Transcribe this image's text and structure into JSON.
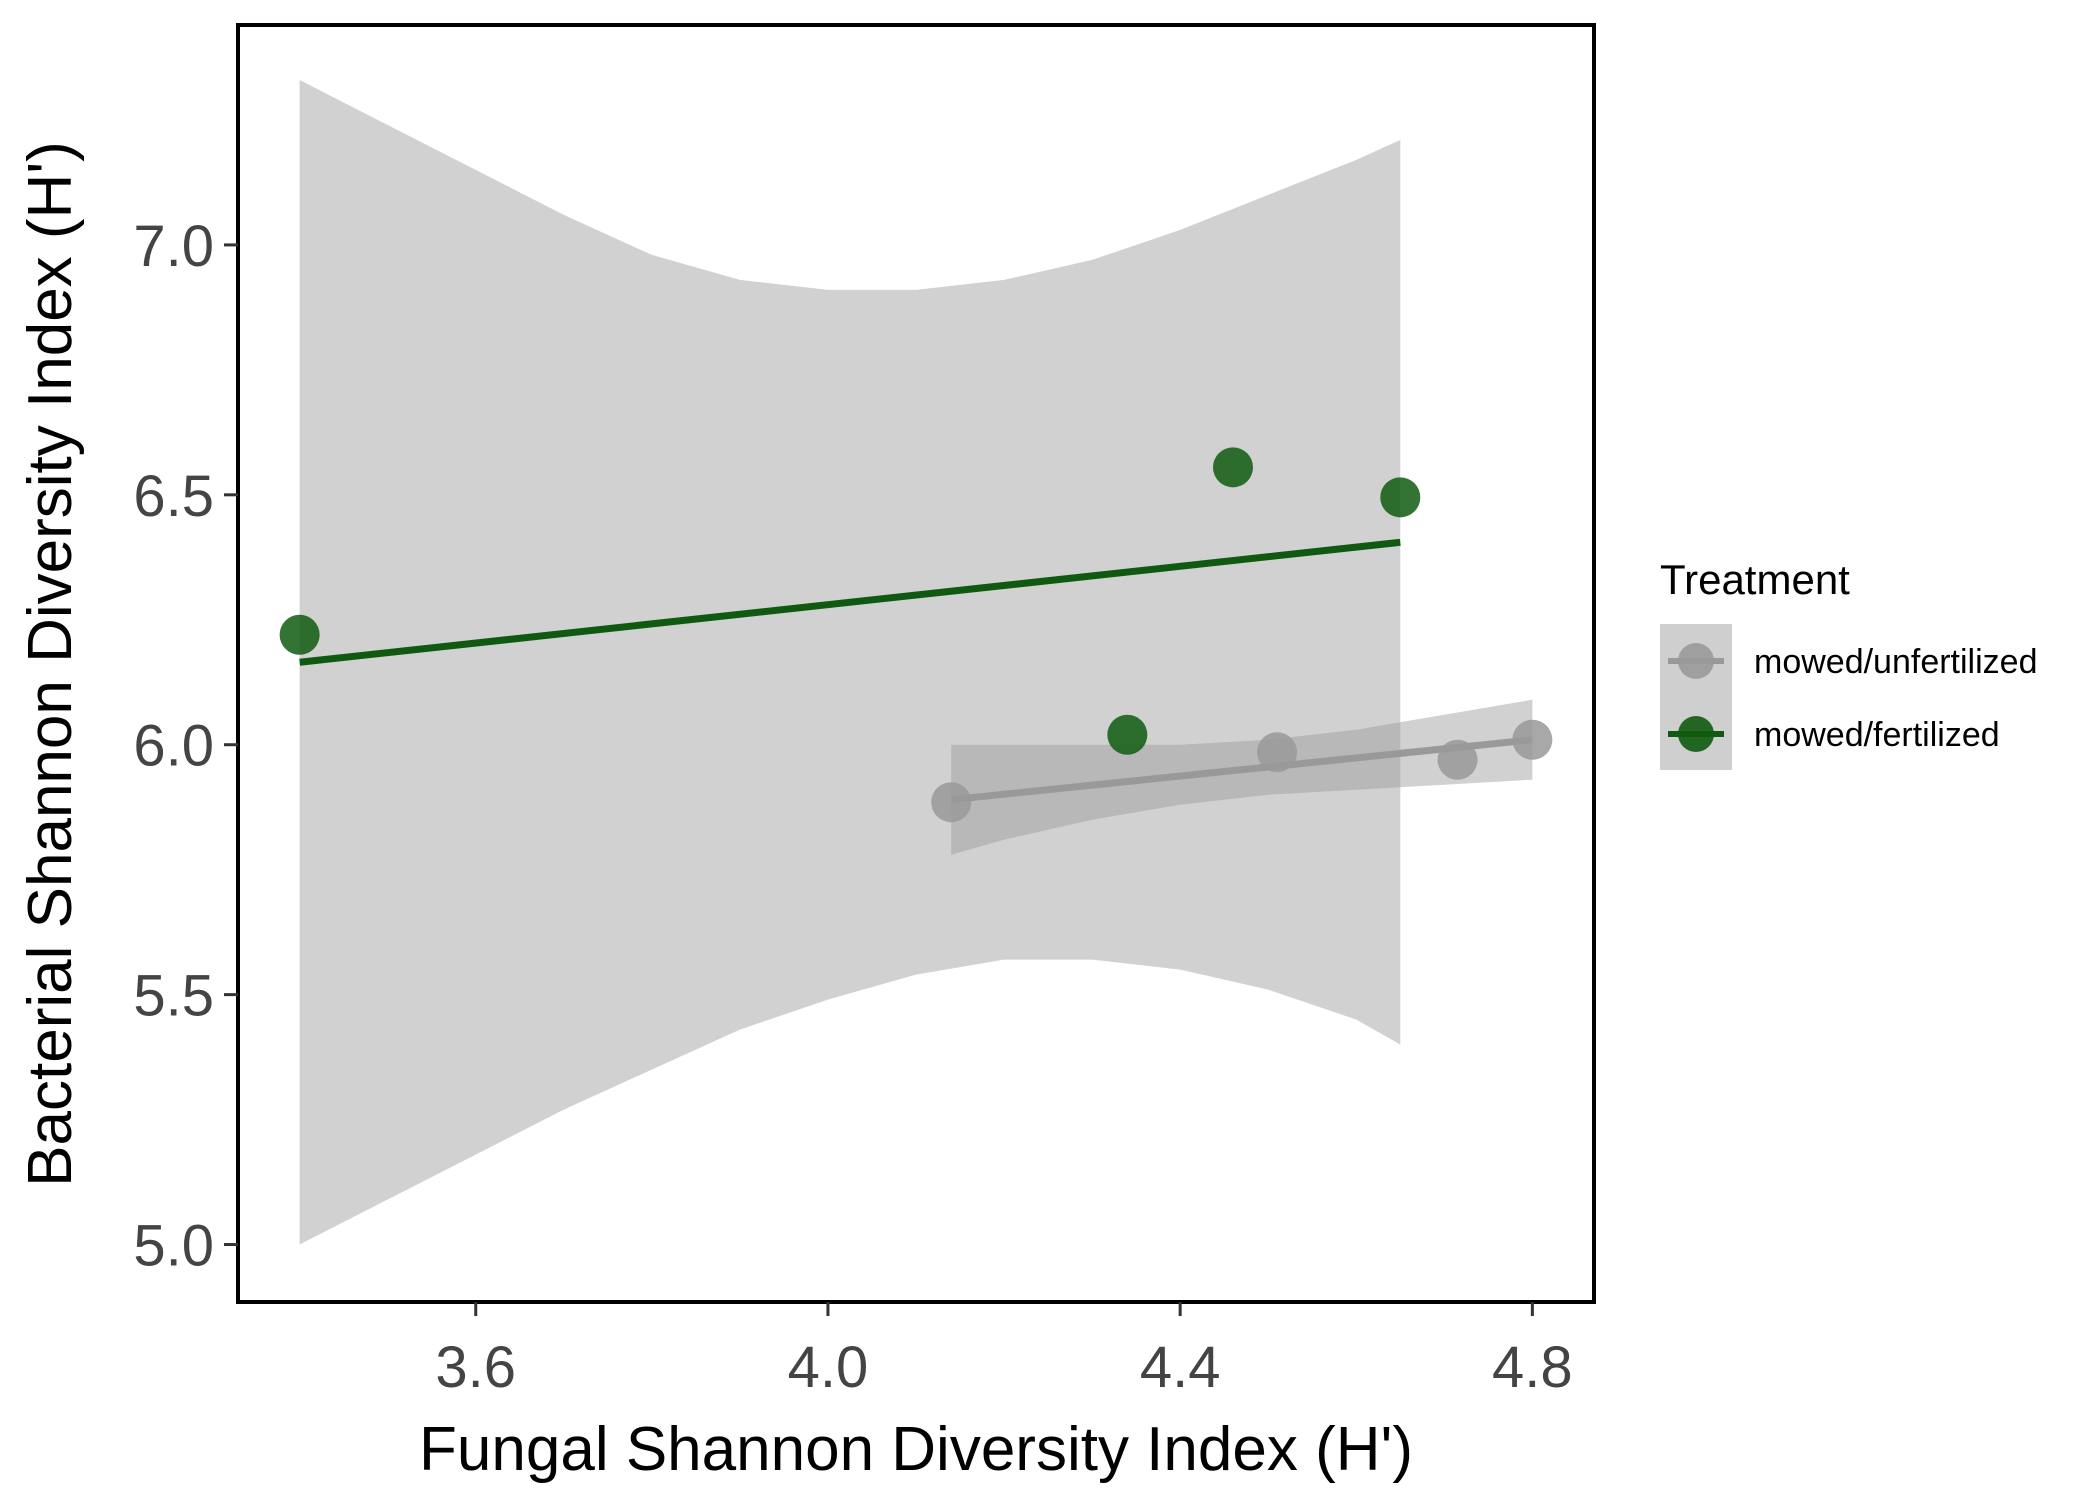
{
  "chart_data": {
    "type": "scatter",
    "title": "",
    "xlabel": "Fungal Shannon Diversity Index (H')",
    "ylabel": "Bacterial Shannon Diversity Index (H')",
    "xlim": [
      3.33,
      4.87
    ],
    "ylim": [
      4.885,
      7.44
    ],
    "x_ticks": [
      3.6,
      4.0,
      4.4,
      4.8
    ],
    "x_tick_labels": [
      "3.6",
      "4.0",
      "4.4",
      "4.8"
    ],
    "y_ticks": [
      5.0,
      5.5,
      6.0,
      6.5,
      7.0
    ],
    "y_tick_labels": [
      "5.0",
      "5.5",
      "6.0",
      "6.5",
      "7.0"
    ],
    "grid": false,
    "legend": {
      "title": "Treatment",
      "position": "right"
    },
    "series": [
      {
        "name": "mowed/unfertilized",
        "color": "#999999",
        "points": [
          {
            "x": 4.14,
            "y": 5.885
          },
          {
            "x": 4.51,
            "y": 5.985
          },
          {
            "x": 4.715,
            "y": 5.97
          },
          {
            "x": 4.8,
            "y": 6.01
          }
        ],
        "fit_line": {
          "x": [
            4.14,
            4.8
          ],
          "y": [
            5.89,
            6.01
          ]
        },
        "confidence_band": {
          "x": [
            4.14,
            4.2,
            4.3,
            4.4,
            4.5,
            4.6,
            4.7,
            4.8
          ],
          "upper": [
            6.0,
            6.0,
            6.0,
            6.0,
            6.01,
            6.03,
            6.06,
            6.09
          ],
          "lower": [
            5.78,
            5.81,
            5.85,
            5.88,
            5.9,
            5.91,
            5.92,
            5.93
          ]
        }
      },
      {
        "name": "mowed/fertilized",
        "color": "#0f5a10",
        "points": [
          {
            "x": 3.4,
            "y": 6.22
          },
          {
            "x": 4.34,
            "y": 6.02
          },
          {
            "x": 4.46,
            "y": 6.555
          },
          {
            "x": 4.65,
            "y": 6.495
          }
        ],
        "fit_line": {
          "x": [
            3.4,
            4.65
          ],
          "y": [
            6.165,
            6.405
          ]
        },
        "confidence_band": {
          "x": [
            3.4,
            3.5,
            3.6,
            3.7,
            3.8,
            3.9,
            4.0,
            4.1,
            4.2,
            4.3,
            4.4,
            4.5,
            4.6,
            4.65
          ],
          "upper": [
            7.33,
            7.24,
            7.15,
            7.06,
            6.98,
            6.93,
            6.91,
            6.91,
            6.93,
            6.97,
            7.03,
            7.1,
            7.17,
            7.21
          ],
          "lower": [
            5.0,
            5.09,
            5.18,
            5.27,
            5.35,
            5.43,
            5.49,
            5.54,
            5.57,
            5.57,
            5.55,
            5.51,
            5.45,
            5.4
          ]
        }
      }
    ]
  }
}
